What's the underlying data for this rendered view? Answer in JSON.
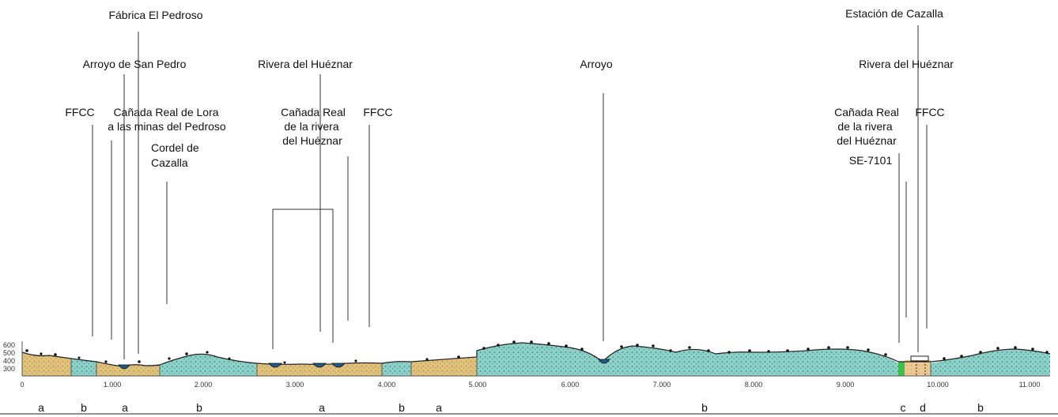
{
  "labels": [
    {
      "text": "Fábrica El Pedroso"
    },
    {
      "text": "Arroyo de San Pedro"
    },
    {
      "text": "FFCC"
    },
    {
      "text": "Cañada Real de Lora"
    },
    {
      "text": "a las minas del Pedroso"
    },
    {
      "text": "Cordel de"
    },
    {
      "text": "Cazalla"
    },
    {
      "text": "Rivera del Huéznar"
    },
    {
      "text": "Cañada Real"
    },
    {
      "text": "de la rivera"
    },
    {
      "text": "del Huéznar"
    },
    {
      "text": "FFCC"
    },
    {
      "text": "Arroyo"
    },
    {
      "text": "Estación de Cazalla"
    },
    {
      "text": "Rivera del Huéznar"
    },
    {
      "text": "Cañada Real"
    },
    {
      "text": "de la rivera"
    },
    {
      "text": "del Huéznar"
    },
    {
      "text": "FFCC"
    },
    {
      "text": "SE-7101"
    }
  ],
  "elevation_ticks": [
    "600",
    "500",
    "400",
    "300"
  ],
  "distance_ticks": [
    "0",
    "1.000",
    "2.000",
    "3.000",
    "4.000",
    "5.000",
    "6.000",
    "7.000",
    "8.000",
    "9.000",
    "10.000",
    "11.000"
  ],
  "zone_letters": [
    "a",
    "b",
    "a",
    "b",
    "a",
    "b",
    "a",
    "b",
    "c",
    "d",
    "b"
  ],
  "colors": {
    "zone_a": "#d6b36a",
    "zone_b": "#5fb3a8",
    "zone_c": "#3fbf4a",
    "zone_d": "#e3c189",
    "water": "#1d5c86",
    "outline": "#222222"
  }
}
